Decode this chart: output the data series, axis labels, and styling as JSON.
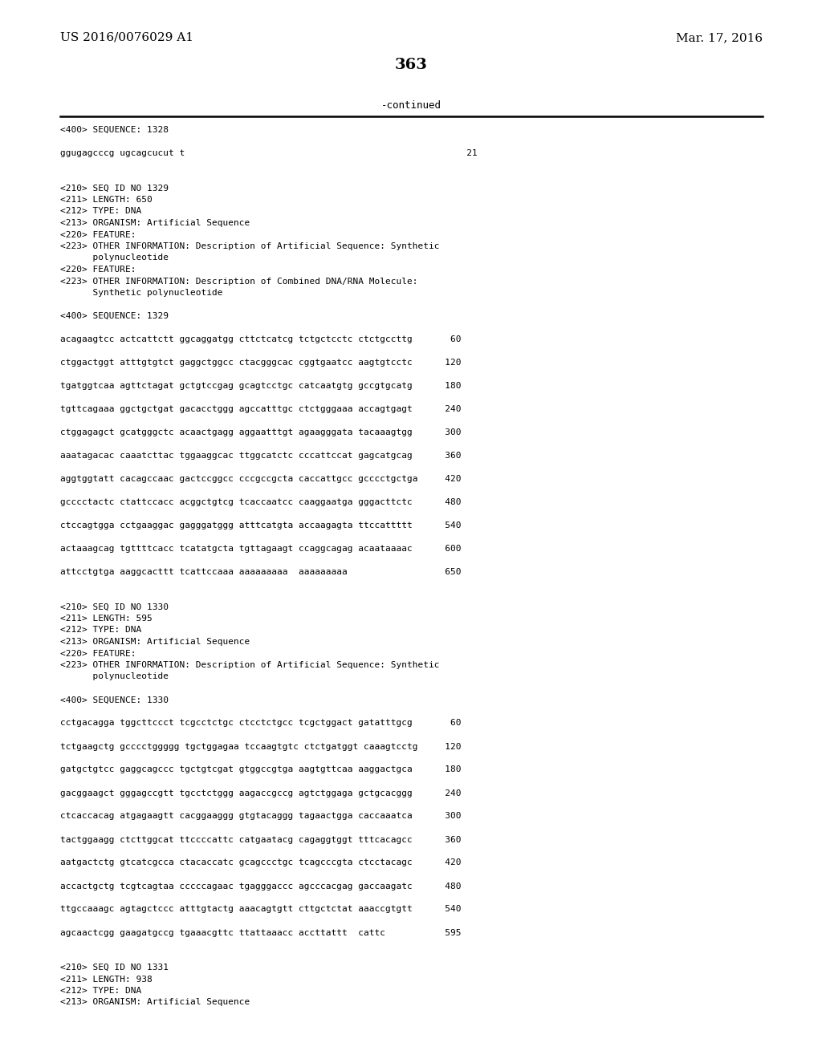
{
  "header_left": "US 2016/0076029 A1",
  "header_right": "Mar. 17, 2016",
  "page_number": "363",
  "continued_text": "-continued",
  "background_color": "#ffffff",
  "text_color": "#000000",
  "font_size_header": 11,
  "font_size_page": 14,
  "font_size_body": 8.0,
  "content_lines": [
    "<400> SEQUENCE: 1328",
    "",
    "ggugagcccg ugcagcucut t                                                    21",
    "",
    "",
    "<210> SEQ ID NO 1329",
    "<211> LENGTH: 650",
    "<212> TYPE: DNA",
    "<213> ORGANISM: Artificial Sequence",
    "<220> FEATURE:",
    "<223> OTHER INFORMATION: Description of Artificial Sequence: Synthetic",
    "      polynucleotide",
    "<220> FEATURE:",
    "<223> OTHER INFORMATION: Description of Combined DNA/RNA Molecule:",
    "      Synthetic polynucleotide",
    "",
    "<400> SEQUENCE: 1329",
    "",
    "acagaagtcc actcattctt ggcaggatgg cttctcatcg tctgctcctc ctctgccttg       60",
    "",
    "ctggactggt atttgtgtct gaggctggcc ctacgggcac cggtgaatcc aagtgtcctc      120",
    "",
    "tgatggtcaa agttctagat gctgtccgag gcagtcctgc catcaatgtg gccgtgcatg      180",
    "",
    "tgttcagaaa ggctgctgat gacacctggg agccatttgc ctctgggaaa accagtgagt      240",
    "",
    "ctggagagct gcatgggctc acaactgagg aggaatttgt agaagggata tacaaagtgg      300",
    "",
    "aaatagacac caaatcttac tggaaggcac ttggcatctc cccattccat gagcatgcag      360",
    "",
    "aggtggtatt cacagccaac gactccggcc cccgccgcta caccattgcc gcccctgctga     420",
    "",
    "gcccctactc ctattccacc acggctgtcg tcaccaatcc caaggaatga gggacttctc      480",
    "",
    "ctccagtgga cctgaaggac gagggatggg atttcatgta accaagagta ttccattttt      540",
    "",
    "actaaagcag tgttttcacc tcatatgcta tgttagaagt ccaggcagag acaataaaac      600",
    "",
    "attcctgtga aaggcacttt tcattccaaa aaaaaaaaa  aaaaaaaaa                  650",
    "",
    "",
    "<210> SEQ ID NO 1330",
    "<211> LENGTH: 595",
    "<212> TYPE: DNA",
    "<213> ORGANISM: Artificial Sequence",
    "<220> FEATURE:",
    "<223> OTHER INFORMATION: Description of Artificial Sequence: Synthetic",
    "      polynucleotide",
    "",
    "<400> SEQUENCE: 1330",
    "",
    "cctgacagga tggcttccct tcgcctctgc ctcctctgcc tcgctggact gatatttgcg       60",
    "",
    "tctgaagctg gcccctggggg tgctggagaa tccaagtgtc ctctgatggt caaagtcctg     120",
    "",
    "gatgctgtcc gaggcagccc tgctgtcgat gtggccgtga aagtgttcaa aaggactgca      180",
    "",
    "gacggaagct gggagccgtt tgcctctggg aagaccgccg agtctggaga gctgcacggg      240",
    "",
    "ctcaccacag atgagaagtt cacggaaggg gtgtacaggg tagaactgga caccaaatca      300",
    "",
    "tactggaagg ctcttggcat ttccccattc catgaatacg cagaggtggt tttcacagcc      360",
    "",
    "aatgactctg gtcatcgcca ctacaccatc gcagccctgc tcagcccgta ctcctacagc      420",
    "",
    "accactgctg tcgtcagtaa cccccagaac tgagggaccc agcccacgag gaccaagatc      480",
    "",
    "ttgccaaagc agtagctccc atttgtactg aaacagtgtt cttgctctat aaaccgtgtt      540",
    "",
    "agcaactcgg gaagatgccg tgaaacgttc ttattaaacc accttattt  cattc           595",
    "",
    "",
    "<210> SEQ ID NO 1331",
    "<211> LENGTH: 938",
    "<212> TYPE: DNA",
    "<213> ORGANISM: Artificial Sequence"
  ]
}
